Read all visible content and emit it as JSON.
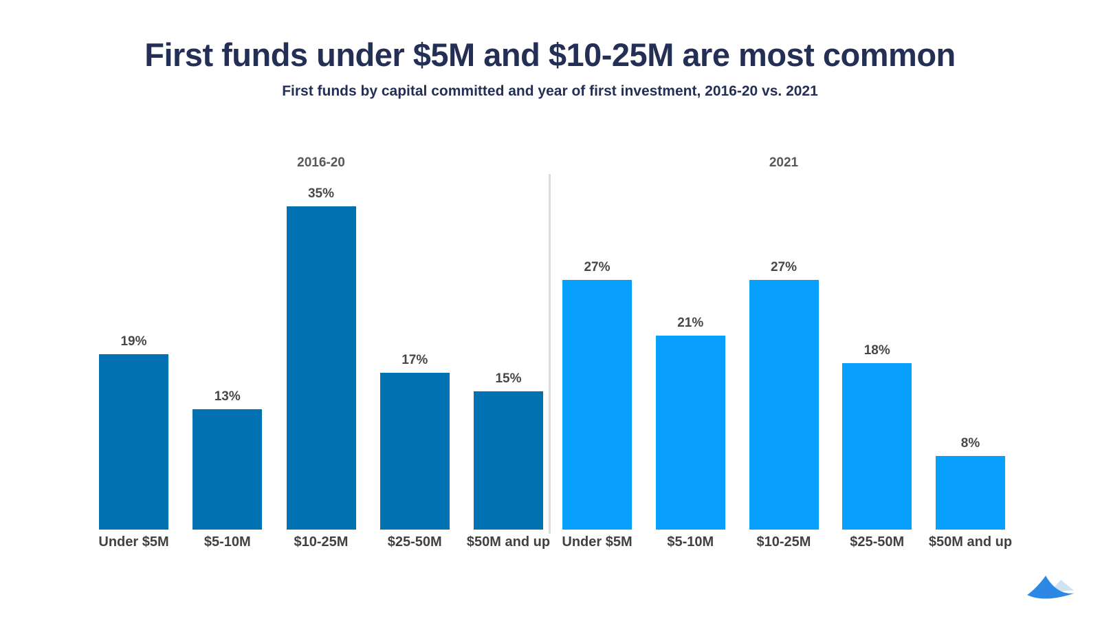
{
  "page": {
    "title": "First funds under $5M and $10-25M are most common",
    "subtitle": "First funds by capital committed and year of first investment, 2016-20 vs. 2021"
  },
  "chart_data": {
    "type": "bar",
    "categories": [
      "Under $5M",
      "$5-10M",
      "$10-25M",
      "$25-50M",
      "$50M and up"
    ],
    "series": [
      {
        "name": "2016-20",
        "color": "#0271B2",
        "values": [
          19,
          13,
          35,
          17,
          15
        ]
      },
      {
        "name": "2021",
        "color": "#09A0FD",
        "values": [
          27,
          21,
          27,
          18,
          8
        ]
      }
    ],
    "value_suffix": "%",
    "title": "First funds under $5M and $10-25M are most common",
    "subtitle": "First funds by capital committed and year of first investment, 2016-20 vs. 2021",
    "xlabel": "",
    "ylabel": "",
    "ylim": [
      0,
      35
    ],
    "grid": false,
    "data_labels": true,
    "legend_position": "group-titles-above-each-cluster",
    "group_divider": true
  },
  "colors": {
    "title_text": "#242F56",
    "series_2016_20": "#0271B2",
    "series_2021": "#09A0FD",
    "value_label_text": "#474749",
    "axis_label_text": "#414144",
    "group_title_text": "#58585B",
    "divider": "#DCDCDC",
    "logo_primary": "#2D87E5",
    "logo_secondary": "#CFE4F2"
  },
  "logo": {
    "name": "wave-mountain-logo"
  }
}
